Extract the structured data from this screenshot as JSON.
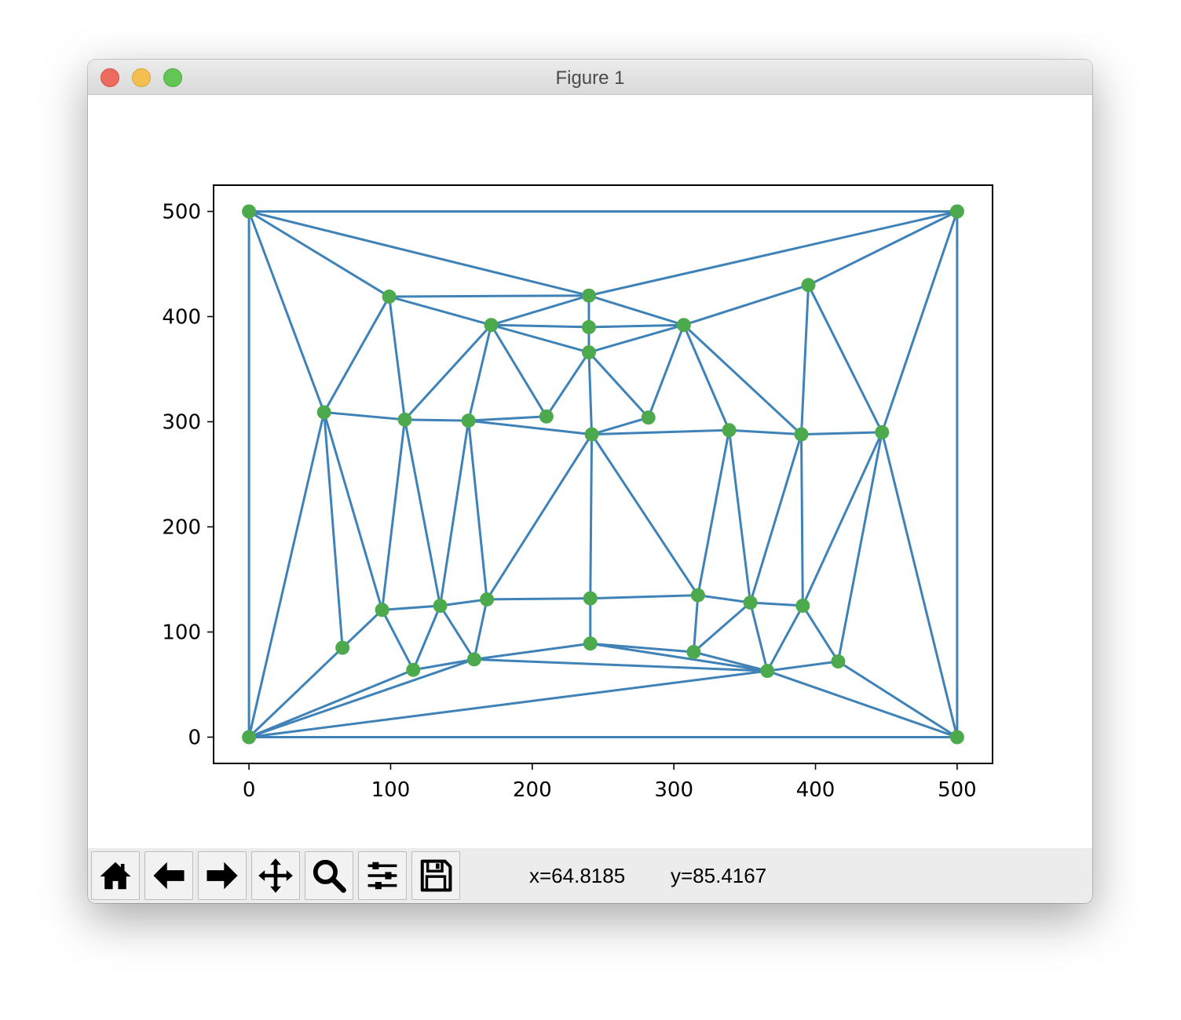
{
  "window": {
    "title": "Figure 1"
  },
  "toolbar": {
    "buttons": [
      {
        "name": "home-button",
        "icon": "home-icon",
        "label": "Home"
      },
      {
        "name": "back-button",
        "icon": "arrow-left-icon",
        "label": "Back"
      },
      {
        "name": "forward-button",
        "icon": "arrow-right-icon",
        "label": "Forward"
      },
      {
        "name": "pan-button",
        "icon": "move-arrows-icon",
        "label": "Pan"
      },
      {
        "name": "zoom-button",
        "icon": "magnifier-icon",
        "label": "Zoom"
      },
      {
        "name": "subplots-button",
        "icon": "sliders-icon",
        "label": "Subplots"
      },
      {
        "name": "save-button",
        "icon": "floppy-disk-icon",
        "label": "Save"
      }
    ],
    "coord_x": "x=64.8185",
    "coord_y": "y=85.4167"
  },
  "chart_data": {
    "type": "line",
    "subtype": "triangulation-mesh",
    "title": "",
    "xlabel": "",
    "ylabel": "",
    "xlim": [
      -25,
      525
    ],
    "ylim": [
      -25,
      525
    ],
    "xticks": [
      0,
      100,
      200,
      300,
      400,
      500
    ],
    "yticks": [
      0,
      100,
      200,
      300,
      400,
      500
    ],
    "tick_labels_x": [
      "0",
      "100",
      "200",
      "300",
      "400",
      "500"
    ],
    "tick_labels_y": [
      "0",
      "100",
      "200",
      "300",
      "400",
      "500"
    ],
    "grid": false,
    "edge_color": "#3e82b7",
    "point_color": "#4caa4c",
    "points": [
      [
        0,
        0
      ],
      [
        500,
        0
      ],
      [
        500,
        500
      ],
      [
        0,
        500
      ],
      [
        99,
        419
      ],
      [
        240,
        420
      ],
      [
        395,
        430
      ],
      [
        171,
        392
      ],
      [
        240,
        390
      ],
      [
        307,
        392
      ],
      [
        240,
        366
      ],
      [
        53,
        309
      ],
      [
        110,
        302
      ],
      [
        155,
        301
      ],
      [
        210,
        305
      ],
      [
        242,
        288
      ],
      [
        282,
        304
      ],
      [
        339,
        292
      ],
      [
        390,
        288
      ],
      [
        447,
        290
      ],
      [
        94,
        121
      ],
      [
        135,
        125
      ],
      [
        168,
        131
      ],
      [
        241,
        132
      ],
      [
        317,
        135
      ],
      [
        354,
        128
      ],
      [
        391,
        125
      ],
      [
        66,
        85
      ],
      [
        116,
        64
      ],
      [
        159,
        74
      ],
      [
        241,
        89
      ],
      [
        314,
        81
      ],
      [
        366,
        63
      ],
      [
        416,
        72
      ]
    ],
    "edges": [
      [
        0,
        1
      ],
      [
        1,
        2
      ],
      [
        2,
        3
      ],
      [
        3,
        0
      ],
      [
        3,
        5
      ],
      [
        5,
        2
      ],
      [
        2,
        6
      ],
      [
        2,
        19
      ],
      [
        1,
        19
      ],
      [
        1,
        33
      ],
      [
        1,
        32
      ],
      [
        0,
        32
      ],
      [
        3,
        4
      ],
      [
        3,
        11
      ],
      [
        0,
        11
      ],
      [
        0,
        27
      ],
      [
        0,
        28
      ],
      [
        0,
        29
      ],
      [
        4,
        5
      ],
      [
        4,
        7
      ],
      [
        4,
        11
      ],
      [
        4,
        12
      ],
      [
        5,
        7
      ],
      [
        5,
        8
      ],
      [
        5,
        9
      ],
      [
        6,
        9
      ],
      [
        6,
        18
      ],
      [
        6,
        19
      ],
      [
        7,
        8
      ],
      [
        7,
        10
      ],
      [
        7,
        12
      ],
      [
        7,
        13
      ],
      [
        7,
        14
      ],
      [
        8,
        9
      ],
      [
        8,
        10
      ],
      [
        9,
        10
      ],
      [
        9,
        16
      ],
      [
        9,
        17
      ],
      [
        9,
        18
      ],
      [
        10,
        14
      ],
      [
        10,
        15
      ],
      [
        10,
        16
      ],
      [
        11,
        12
      ],
      [
        11,
        20
      ],
      [
        11,
        27
      ],
      [
        12,
        13
      ],
      [
        12,
        20
      ],
      [
        12,
        21
      ],
      [
        13,
        14
      ],
      [
        13,
        15
      ],
      [
        13,
        21
      ],
      [
        13,
        22
      ],
      [
        15,
        16
      ],
      [
        15,
        17
      ],
      [
        15,
        22
      ],
      [
        15,
        23
      ],
      [
        15,
        24
      ],
      [
        17,
        18
      ],
      [
        17,
        24
      ],
      [
        17,
        25
      ],
      [
        18,
        19
      ],
      [
        18,
        25
      ],
      [
        18,
        26
      ],
      [
        19,
        26
      ],
      [
        19,
        33
      ],
      [
        20,
        21
      ],
      [
        20,
        27
      ],
      [
        20,
        28
      ],
      [
        21,
        22
      ],
      [
        21,
        28
      ],
      [
        21,
        29
      ],
      [
        22,
        23
      ],
      [
        22,
        29
      ],
      [
        23,
        24
      ],
      [
        23,
        30
      ],
      [
        24,
        25
      ],
      [
        24,
        31
      ],
      [
        25,
        26
      ],
      [
        25,
        31
      ],
      [
        25,
        32
      ],
      [
        26,
        32
      ],
      [
        26,
        33
      ],
      [
        28,
        29
      ],
      [
        29,
        30
      ],
      [
        29,
        32
      ],
      [
        30,
        31
      ],
      [
        30,
        32
      ],
      [
        31,
        32
      ],
      [
        32,
        33
      ]
    ]
  }
}
